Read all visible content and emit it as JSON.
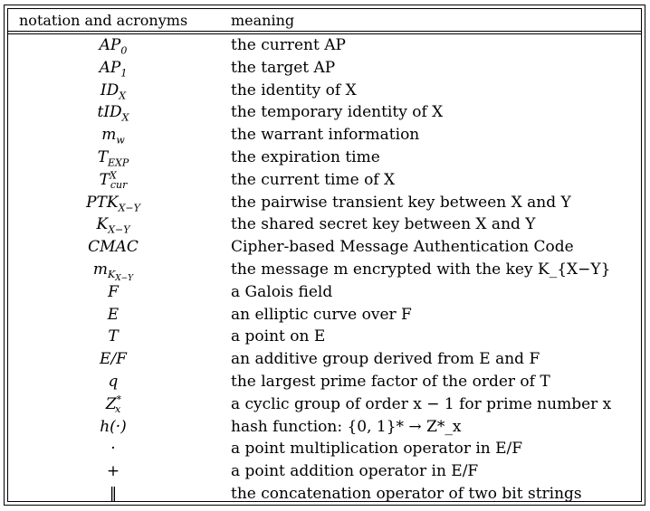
{
  "table": {
    "headers": {
      "notation": "notation and acronyms",
      "meaning": "meaning"
    },
    "rows": [
      {
        "notation_base": "AP",
        "notation_sub": "0",
        "notation_sup": "",
        "meaning": "the current AP"
      },
      {
        "notation_base": "AP",
        "notation_sub": "1",
        "notation_sup": "",
        "meaning": "the target AP"
      },
      {
        "notation_base": "ID",
        "notation_sub": "X",
        "notation_sup": "",
        "meaning": "the identity of X"
      },
      {
        "notation_base": "tID",
        "notation_sub": "X",
        "notation_sup": "",
        "meaning": "the temporary identity of X"
      },
      {
        "notation_base": "m",
        "notation_sub": "w",
        "notation_sup": "",
        "meaning": "the warrant information"
      },
      {
        "notation_base": "T",
        "notation_sub": "EXP",
        "notation_sup": "",
        "meaning": "the expiration time"
      },
      {
        "notation_base": "T",
        "notation_sub": "cur",
        "notation_sup": "X",
        "meaning": "the current time of X"
      },
      {
        "notation_base": "PTK",
        "notation_sub": "X−Y",
        "notation_sup": "",
        "meaning": "the pairwise transient key between X and Y"
      },
      {
        "notation_base": "K",
        "notation_sub": "X−Y",
        "notation_sup": "",
        "meaning": "the shared secret key between X and Y"
      },
      {
        "notation_base": "CMAC",
        "notation_sub": "",
        "notation_sup": "",
        "meaning": "Cipher-based Message Authentication Code"
      },
      {
        "notation_base": "m",
        "notation_sub": "K",
        "notation_subsub": "X−Y",
        "notation_sup": "",
        "meaning": "the message m encrypted with the key K_{X−Y}"
      },
      {
        "notation_base": "F",
        "notation_sub": "",
        "notation_sup": "",
        "meaning": "a Galois field"
      },
      {
        "notation_base": "E",
        "notation_sub": "",
        "notation_sup": "",
        "meaning": "an elliptic curve over F"
      },
      {
        "notation_base": "T",
        "notation_sub": "",
        "notation_sup": "",
        "meaning": "a point on E"
      },
      {
        "notation_base": "E/F",
        "notation_sub": "",
        "notation_sup": "",
        "meaning": "an additive group derived from E and F"
      },
      {
        "notation_base": "q",
        "notation_sub": "",
        "notation_sup": "",
        "meaning": "the largest prime factor of the order of T"
      },
      {
        "notation_base": "Z",
        "notation_sub": "x",
        "notation_sup": "*",
        "meaning": "a cyclic group of order x − 1 for prime number x"
      },
      {
        "notation_base": "h(·)",
        "notation_sub": "",
        "notation_sup": "",
        "meaning": "hash function: {0, 1}* → Z*_x"
      },
      {
        "notation_base": "·",
        "notation_sub": "",
        "notation_sup": "",
        "meaning": "a point multiplication operator in E/F"
      },
      {
        "notation_base": "+",
        "notation_sub": "",
        "notation_sup": "",
        "meaning": "a point addition operator in E/F"
      },
      {
        "notation_base": "‖",
        "notation_sub": "",
        "notation_sup": "",
        "meaning": "the concatenation operator of two bit strings"
      }
    ]
  }
}
